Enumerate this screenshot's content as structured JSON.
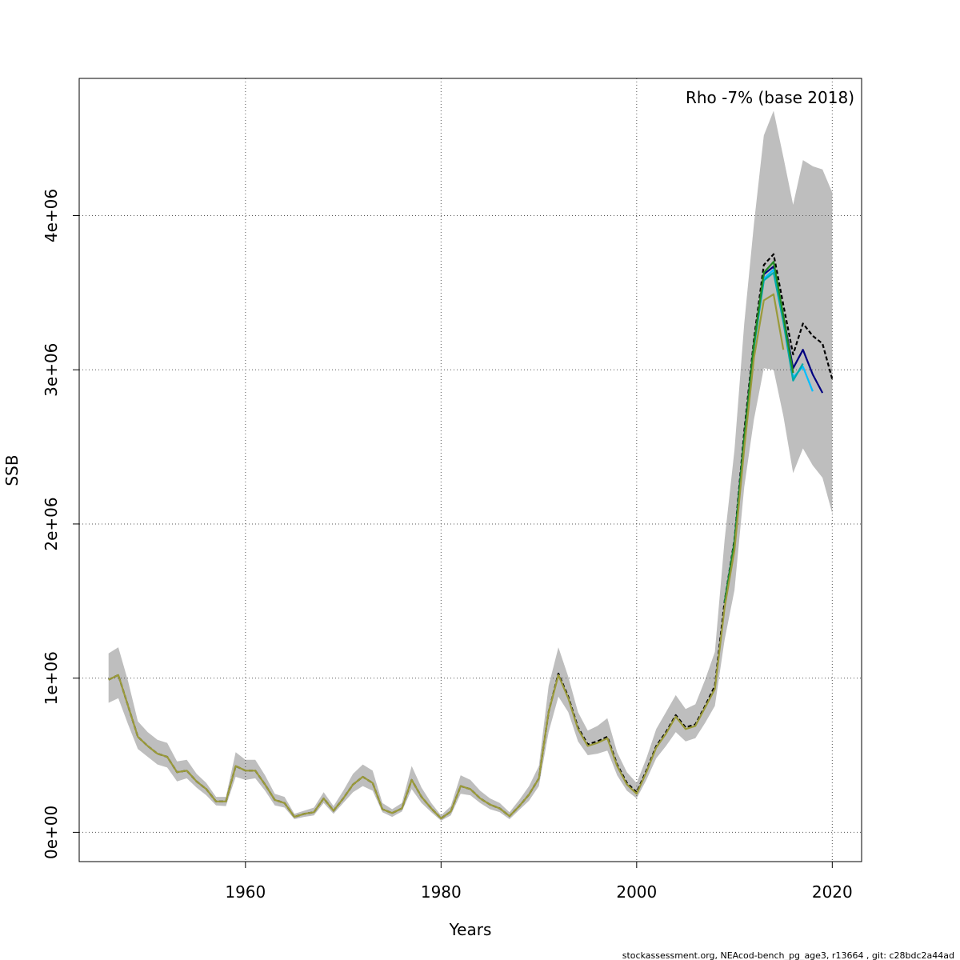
{
  "chart_data": {
    "type": "line",
    "title": "",
    "annotation": "Rho -7% (base 2018)",
    "xlabel": "Years",
    "ylabel": "SSB",
    "xlim": [
      1943,
      2023
    ],
    "ylim": [
      -190000,
      4890000
    ],
    "x_ticks": [
      1960,
      1980,
      2000,
      2020
    ],
    "x_tick_labels": [
      "1960",
      "1980",
      "2000",
      "2020"
    ],
    "y_ticks": [
      0,
      1000000,
      2000000,
      3000000,
      4000000
    ],
    "y_tick_labels": [
      "0e+00",
      "1e+06",
      "2e+06",
      "3e+06",
      "4e+06"
    ],
    "grid": true,
    "footer": "stockassessment.org, NEAcod-bench_pg_age3, r13664 , git: c28bdc2a44ad",
    "band": {
      "color": "#bebebe",
      "x": [
        1946,
        1947,
        1948,
        1949,
        1950,
        1951,
        1952,
        1953,
        1954,
        1955,
        1956,
        1957,
        1958,
        1959,
        1960,
        1961,
        1962,
        1963,
        1964,
        1965,
        1966,
        1967,
        1968,
        1969,
        1970,
        1971,
        1972,
        1973,
        1974,
        1975,
        1976,
        1977,
        1978,
        1979,
        1980,
        1981,
        1982,
        1983,
        1984,
        1985,
        1986,
        1987,
        1988,
        1989,
        1990,
        1991,
        1992,
        1993,
        1994,
        1995,
        1996,
        1997,
        1998,
        1999,
        2000,
        2001,
        2002,
        2003,
        2004,
        2005,
        2006,
        2007,
        2008,
        2009,
        2010,
        2011,
        2012,
        2013,
        2014,
        2015,
        2016,
        2017,
        2018,
        2019,
        2020
      ],
      "upper": [
        1160000,
        1200000,
        980000,
        720000,
        650000,
        600000,
        580000,
        460000,
        470000,
        380000,
        320000,
        230000,
        230000,
        520000,
        470000,
        470000,
        370000,
        250000,
        230000,
        120000,
        140000,
        160000,
        260000,
        170000,
        270000,
        380000,
        440000,
        400000,
        190000,
        150000,
        190000,
        430000,
        290000,
        190000,
        110000,
        170000,
        370000,
        340000,
        270000,
        220000,
        190000,
        130000,
        210000,
        300000,
        430000,
        950000,
        1200000,
        1010000,
        780000,
        660000,
        690000,
        740000,
        520000,
        390000,
        320000,
        480000,
        670000,
        780000,
        890000,
        800000,
        830000,
        990000,
        1170000,
        1900000,
        2480000,
        3300000,
        3950000,
        4520000,
        4680000,
        4380000,
        4070000,
        4360000,
        4320000,
        4300000,
        4150000
      ],
      "lower": [
        840000,
        870000,
        700000,
        540000,
        490000,
        440000,
        420000,
        330000,
        350000,
        290000,
        240000,
        175000,
        170000,
        360000,
        340000,
        350000,
        270000,
        175000,
        160000,
        85000,
        100000,
        110000,
        190000,
        120000,
        190000,
        260000,
        300000,
        270000,
        130000,
        100000,
        135000,
        280000,
        190000,
        130000,
        75000,
        110000,
        250000,
        240000,
        190000,
        150000,
        130000,
        85000,
        145000,
        205000,
        300000,
        650000,
        880000,
        780000,
        590000,
        500000,
        510000,
        530000,
        370000,
        270000,
        220000,
        340000,
        480000,
        560000,
        650000,
        590000,
        610000,
        710000,
        820000,
        1250000,
        1570000,
        2240000,
        2680000,
        3010000,
        3000000,
        2700000,
        2330000,
        2490000,
        2380000,
        2300000,
        2070000
      ]
    },
    "series": [
      {
        "color": "#000000",
        "dashed": true,
        "x": [
          1946,
          1947,
          1948,
          1949,
          1950,
          1951,
          1952,
          1953,
          1954,
          1955,
          1956,
          1957,
          1958,
          1959,
          1960,
          1961,
          1962,
          1963,
          1964,
          1965,
          1966,
          1967,
          1968,
          1969,
          1970,
          1971,
          1972,
          1973,
          1974,
          1975,
          1976,
          1977,
          1978,
          1979,
          1980,
          1981,
          1982,
          1983,
          1984,
          1985,
          1986,
          1987,
          1988,
          1989,
          1990,
          1991,
          1992,
          1993,
          1994,
          1995,
          1996,
          1997,
          1998,
          1999,
          2000,
          2001,
          2002,
          2003,
          2004,
          2005,
          2006,
          2007,
          2008,
          2009,
          2010,
          2011,
          2012,
          2013,
          2014,
          2015,
          2016,
          2017,
          2018,
          2019,
          2020
        ],
        "values": [
          990000,
          1020000,
          820000,
          620000,
          560000,
          510000,
          490000,
          390000,
          400000,
          330000,
          280000,
          200000,
          200000,
          430000,
          400000,
          400000,
          310000,
          210000,
          190000,
          100000,
          120000,
          130000,
          220000,
          140000,
          220000,
          310000,
          360000,
          320000,
          150000,
          125000,
          155000,
          340000,
          230000,
          155000,
          90000,
          135000,
          300000,
          280000,
          220000,
          180000,
          155000,
          105000,
          170000,
          245000,
          350000,
          780000,
          1030000,
          880000,
          680000,
          570000,
          590000,
          620000,
          440000,
          320000,
          260000,
          400000,
          560000,
          650000,
          760000,
          680000,
          700000,
          820000,
          950000,
          1500000,
          1900000,
          2600000,
          3200000,
          3680000,
          3750000,
          3420000,
          3100000,
          3300000,
          3220000,
          3170000,
          2940000
        ]
      },
      {
        "color": "#000080",
        "dashed": false,
        "x": [
          2009,
          2010,
          2011,
          2012,
          2013,
          2014,
          2015,
          2016,
          2017,
          2018,
          2019
        ],
        "values": [
          1490000,
          1880000,
          2560000,
          3170000,
          3620000,
          3670000,
          3350000,
          3010000,
          3130000,
          2970000,
          2850000
        ]
      },
      {
        "color": "#00bfff",
        "dashed": false,
        "x": [
          2009,
          2010,
          2011,
          2012,
          2013,
          2014,
          2015,
          2016,
          2017,
          2018
        ],
        "values": [
          1490000,
          1880000,
          2550000,
          3160000,
          3590000,
          3650000,
          3330000,
          2950000,
          3020000,
          2860000
        ]
      },
      {
        "color": "#00aaaa",
        "dashed": false,
        "x": [
          2009,
          2010,
          2011,
          2012,
          2013,
          2014,
          2015,
          2016,
          2017
        ],
        "values": [
          1490000,
          1880000,
          2550000,
          3150000,
          3580000,
          3630000,
          3310000,
          2930000,
          3040000
        ]
      },
      {
        "color": "#228b22",
        "dashed": false,
        "x": [
          2009,
          2010,
          2011,
          2012,
          2013,
          2014,
          2015,
          2016
        ],
        "values": [
          1490000,
          1880000,
          2560000,
          3170000,
          3630000,
          3700000,
          3350000,
          2980000
        ]
      },
      {
        "color": "#9a9a3a",
        "dashed": false,
        "x": [
          1946,
          1947,
          1948,
          1949,
          1950,
          1951,
          1952,
          1953,
          1954,
          1955,
          1956,
          1957,
          1958,
          1959,
          1960,
          1961,
          1962,
          1963,
          1964,
          1965,
          1966,
          1967,
          1968,
          1969,
          1970,
          1971,
          1972,
          1973,
          1974,
          1975,
          1976,
          1977,
          1978,
          1979,
          1980,
          1981,
          1982,
          1983,
          1984,
          1985,
          1986,
          1987,
          1988,
          1989,
          1990,
          1991,
          1992,
          1993,
          1994,
          1995,
          1996,
          1997,
          1998,
          1999,
          2000,
          2001,
          2002,
          2003,
          2004,
          2005,
          2006,
          2007,
          2008,
          2009,
          2010,
          2011,
          2012,
          2013,
          2014,
          2015
        ],
        "values": [
          990000,
          1020000,
          820000,
          620000,
          560000,
          510000,
          490000,
          390000,
          400000,
          330000,
          280000,
          200000,
          200000,
          430000,
          400000,
          400000,
          310000,
          210000,
          190000,
          100000,
          120000,
          130000,
          220000,
          140000,
          220000,
          310000,
          360000,
          320000,
          150000,
          125000,
          155000,
          340000,
          230000,
          155000,
          90000,
          135000,
          300000,
          280000,
          220000,
          180000,
          155000,
          105000,
          170000,
          245000,
          350000,
          780000,
          1020000,
          870000,
          670000,
          560000,
          580000,
          610000,
          430000,
          310000,
          250000,
          390000,
          550000,
          640000,
          750000,
          670000,
          690000,
          810000,
          930000,
          1460000,
          1830000,
          2490000,
          3080000,
          3450000,
          3490000,
          3130000
        ]
      }
    ]
  }
}
